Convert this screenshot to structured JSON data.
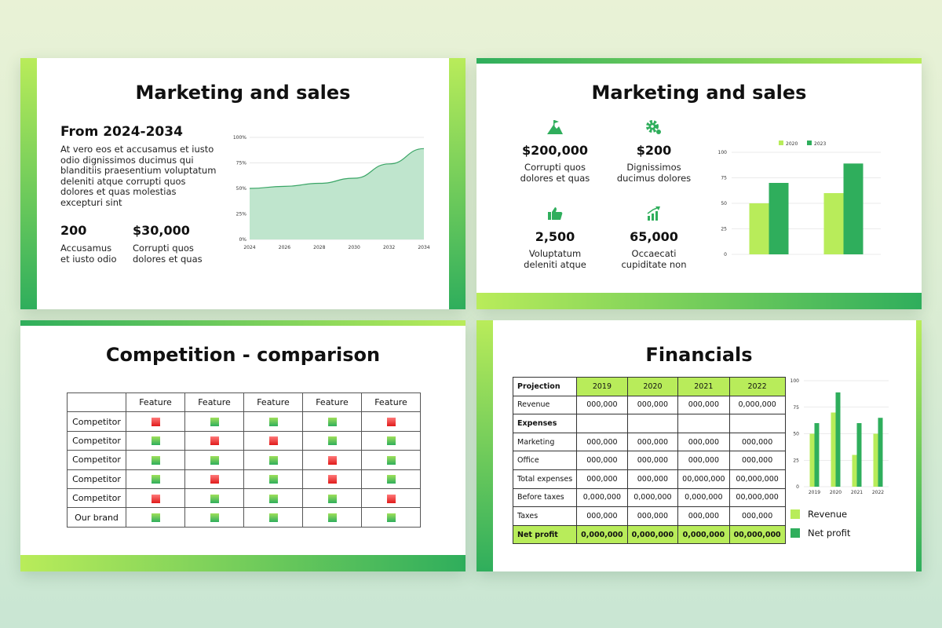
{
  "colors": {
    "light_green": "#b8ec5a",
    "dark_green": "#2fae5c",
    "red": "#e01b1b",
    "area_fill": "#bfe5cd"
  },
  "slide1": {
    "title": "Marketing and sales",
    "subtitle": "From 2024-2034",
    "body": "At vero eos et accusamus et iusto odio dignissimos ducimus qui blanditiis praesentium voluptatum deleniti atque corrupti quos dolores et quas molestias excepturi sint",
    "stats": [
      {
        "value": "200",
        "label": "Accusamus et iusto odio"
      },
      {
        "value": "$30,000",
        "label": "Corrupti quos dolores et quas"
      }
    ]
  },
  "slide2": {
    "title": "Marketing and sales",
    "kpis": [
      {
        "icon": "mountain-flag-icon",
        "value": "$200,000",
        "label": "Corrupti quos dolores et quas"
      },
      {
        "icon": "gear-icon",
        "value": "$200",
        "label": "Dignissimos ducimus dolores"
      },
      {
        "icon": "thumbs-up-icon",
        "value": "2,500",
        "label": "Voluptatum deleniti atque"
      },
      {
        "icon": "growth-chart-icon",
        "value": "65,000",
        "label": "Occaecati cupiditate non"
      }
    ]
  },
  "slide3": {
    "title": "Competition - comparison",
    "headers": [
      "",
      "Feature",
      "Feature",
      "Feature",
      "Feature",
      "Feature"
    ],
    "rows": [
      {
        "name": "Competitor",
        "marks": [
          "r",
          "g",
          "g",
          "g",
          "r"
        ]
      },
      {
        "name": "Competitor",
        "marks": [
          "g",
          "r",
          "r",
          "g",
          "g"
        ]
      },
      {
        "name": "Competitor",
        "marks": [
          "g",
          "g",
          "g",
          "r",
          "g"
        ]
      },
      {
        "name": "Competitor",
        "marks": [
          "g",
          "r",
          "g",
          "r",
          "g"
        ]
      },
      {
        "name": "Competitor",
        "marks": [
          "r",
          "g",
          "g",
          "g",
          "r"
        ]
      },
      {
        "name": "Our brand",
        "marks": [
          "g",
          "g",
          "g",
          "g",
          "g"
        ]
      }
    ]
  },
  "slide4": {
    "title": "Financials",
    "header": [
      "Projection",
      "2019",
      "2020",
      "2021",
      "2022"
    ],
    "rows": [
      [
        "Revenue",
        "000,000",
        "000,000",
        "000,000",
        "0,000,000"
      ],
      [
        "Expenses",
        "",
        "",
        "",
        ""
      ],
      [
        "Marketing",
        "000,000",
        "000,000",
        "000,000",
        "000,000"
      ],
      [
        "Office",
        "000,000",
        "000,000",
        "000,000",
        "000,000"
      ],
      [
        "Total expenses",
        "000,000",
        "000,000",
        "00,000,000",
        "00,000,000"
      ],
      [
        "Before taxes",
        "0,000,000",
        "0,000,000",
        "0,000,000",
        "00,000,000"
      ],
      [
        "Taxes",
        "000,000",
        "000,000",
        "000,000",
        "000,000"
      ]
    ],
    "net": [
      "Net profit",
      "0,000,000",
      "0,000,000",
      "0,000,000",
      "00,000,000"
    ],
    "legend": [
      "Revenue",
      "Net profit"
    ]
  },
  "chart_data": [
    {
      "type": "area",
      "x": [
        "2024",
        "2026",
        "2028",
        "2030",
        "2032",
        "2034"
      ],
      "values": [
        50,
        52,
        55,
        60,
        74,
        89
      ],
      "ylim": [
        0,
        100
      ],
      "yticks": [
        "0%",
        "25%",
        "50%",
        "75%",
        "100%"
      ],
      "grid": true
    },
    {
      "type": "bar",
      "categories": [
        ""
      ],
      "ylim": [
        0,
        100
      ],
      "yticks": [
        "0",
        "25",
        "50",
        "75",
        "100"
      ],
      "groups": [
        [
          50,
          70
        ],
        [
          60,
          89
        ]
      ],
      "series": [
        {
          "name": "2020"
        },
        {
          "name": "2023"
        }
      ],
      "legend": "top"
    },
    {
      "type": "bar",
      "categories": [
        "2019",
        "2020",
        "2021",
        "2022"
      ],
      "ylim": [
        0,
        100
      ],
      "yticks": [
        "0",
        "25",
        "50",
        "75",
        "100"
      ],
      "series": [
        {
          "name": "Revenue",
          "values": [
            50,
            70,
            30,
            50
          ]
        },
        {
          "name": "Net profit",
          "values": [
            60,
            89,
            60,
            65
          ]
        }
      ],
      "legend": "bottom"
    }
  ]
}
